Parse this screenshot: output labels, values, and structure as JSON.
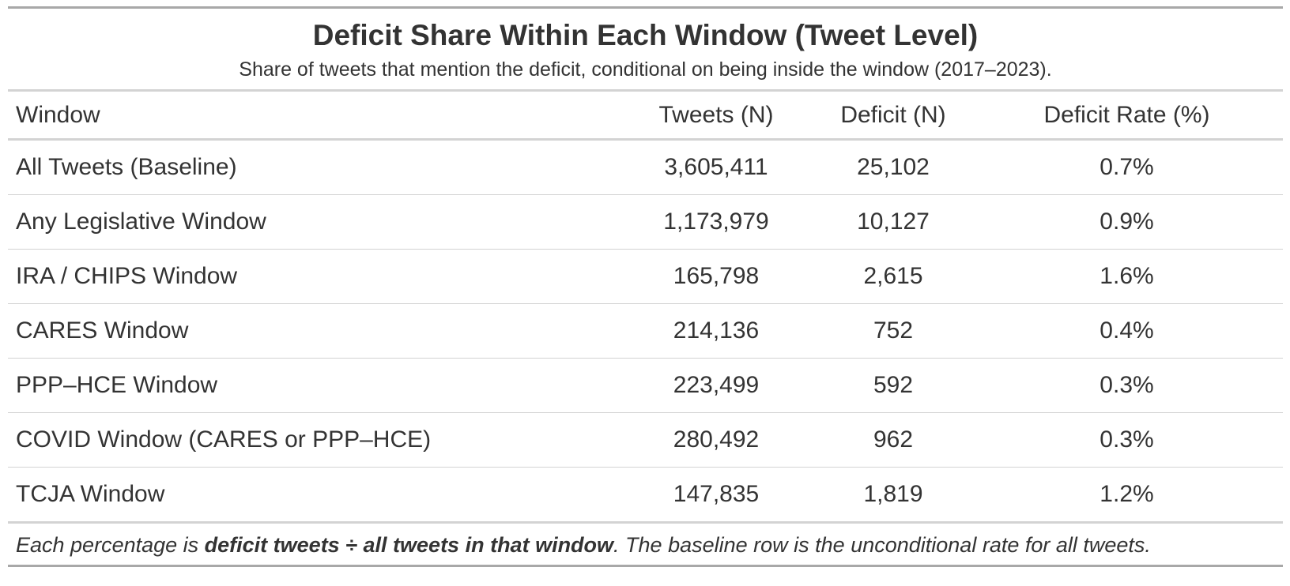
{
  "header": {
    "title": "Deficit Share Within Each Window (Tweet Level)",
    "subtitle": "Share of tweets that mention the deficit, conditional on being inside the window (2017–2023)."
  },
  "columns": {
    "window": "Window",
    "tweets": "Tweets (N)",
    "deficit": "Deficit (N)",
    "rate": "Deficit Rate (%)"
  },
  "rows": [
    {
      "window": "All Tweets (Baseline)",
      "tweets": "3,605,411",
      "deficit": "25,102",
      "rate": "0.7%"
    },
    {
      "window": "Any Legislative Window",
      "tweets": "1,173,979",
      "deficit": "10,127",
      "rate": "0.9%"
    },
    {
      "window": "IRA / CHIPS Window",
      "tweets": "165,798",
      "deficit": "2,615",
      "rate": "1.6%"
    },
    {
      "window": "CARES Window",
      "tweets": "214,136",
      "deficit": "752",
      "rate": "0.4%"
    },
    {
      "window": "PPP–HCE Window",
      "tweets": "223,499",
      "deficit": "592",
      "rate": "0.3%"
    },
    {
      "window": "COVID Window (CARES or PPP–HCE)",
      "tweets": "280,492",
      "deficit": "962",
      "rate": "0.3%"
    },
    {
      "window": "TCJA Window",
      "tweets": "147,835",
      "deficit": "1,819",
      "rate": "1.2%"
    }
  ],
  "footnote": {
    "prefix": "Each percentage is ",
    "emphasis": "deficit tweets ÷ all tweets in that window",
    "suffix": ". The baseline row is the unconditional rate for all tweets."
  },
  "colors": {
    "text": "#333333",
    "outer_rule": "#a8a8a8",
    "inner_rule": "#d3d3d3"
  }
}
